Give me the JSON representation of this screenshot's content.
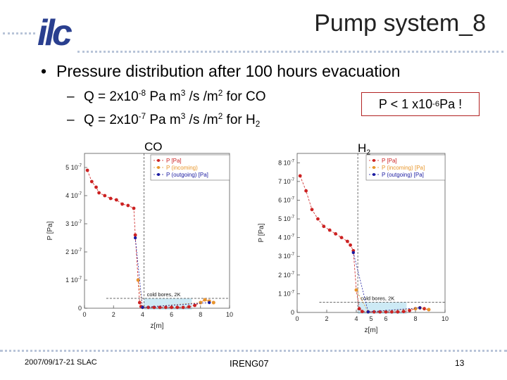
{
  "slide": {
    "title": "Pump system_8",
    "logo_text": "ilc",
    "bullet": "Pressure distribution after 100 hours evacuation",
    "sub1": {
      "a": "Q = 2x10",
      "e1": "-8",
      "b": " Pa m",
      "e2": "3",
      "c": " /s /m",
      "e3": "2",
      "d": " for CO"
    },
    "sub2": {
      "a": "Q = 2x10",
      "e1": "-7",
      "b": " Pa m",
      "e2": "3",
      "c": " /s /m",
      "e3": "2",
      "d": " for H",
      "s": "2"
    },
    "pressure_box": {
      "a": "P < 1 x10",
      "e": "-6",
      "b": " Pa !"
    },
    "co_label": "CO",
    "h2_label": {
      "a": "H",
      "s": "2"
    }
  },
  "footer": {
    "date": "2007/09/17-21  SLAC",
    "conference": "IRENG07",
    "page": "13"
  },
  "colors": {
    "series1": "#cc2222",
    "series2": "#e8962a",
    "series3": "#1a1aa0",
    "box_border": "#b22222",
    "cold_bore": "#cdeaf5"
  },
  "chart_data": [
    {
      "type": "line",
      "ylabel": "P [Pa]",
      "xlabel": "z[m]",
      "xlim": [
        0,
        10
      ],
      "ylim": [
        0,
        5.5e-07
      ],
      "x_ticks": [
        "0",
        "2",
        "4",
        "6",
        "8",
        "10"
      ],
      "y_ticks": [
        {
          "m": "0",
          "e": ""
        },
        {
          "m": "1 10",
          "e": "-7"
        },
        {
          "m": "2 10",
          "e": "-7"
        },
        {
          "m": "3 10",
          "e": "-7"
        },
        {
          "m": "4 10",
          "e": "-7"
        },
        {
          "m": "5 10",
          "e": "-7"
        }
      ],
      "legend": [
        "P [Pa]",
        "P (incoming)",
        "P (outgoing) [Pa]"
      ],
      "legend_position": "top-right",
      "annotation": "cold bores, 2K",
      "x": [
        0.2,
        0.5,
        0.8,
        1.0,
        1.4,
        1.8,
        2.2,
        2.6,
        3.0,
        3.4,
        3.5,
        3.7,
        3.8,
        3.9,
        4.0,
        4.4,
        4.8,
        5.2,
        5.6,
        6.0,
        6.4,
        6.8,
        7.2,
        7.6,
        8.0,
        8.3,
        8.6,
        8.9
      ],
      "series": [
        {
          "name": "P [Pa]",
          "values": [
            4.9e-07,
            4.5e-07,
            4.3e-07,
            4.1e-07,
            4e-07,
            3.9e-07,
            3.85e-07,
            3.7e-07,
            3.65e-07,
            3.55e-07,
            2.6e-07,
            1e-07,
            2e-08,
            6e-09,
            3e-09,
            3e-09,
            3e-09,
            3e-09,
            3e-09,
            3e-09,
            3e-09,
            3e-09,
            5e-09,
            1e-08,
            2e-08,
            3e-08,
            2.5e-08,
            2e-08
          ]
        },
        {
          "name": "P (incoming)",
          "values": [
            null,
            null,
            null,
            null,
            null,
            null,
            null,
            null,
            null,
            null,
            null,
            1e-07,
            null,
            null,
            3e-09,
            null,
            null,
            null,
            null,
            null,
            null,
            null,
            null,
            null,
            2e-08,
            3e-08,
            2.5e-08,
            2e-08
          ]
        },
        {
          "name": "P (outgoing) [Pa]",
          "values": [
            null,
            null,
            null,
            null,
            null,
            null,
            null,
            null,
            null,
            null,
            2.5e-07,
            null,
            null,
            null,
            3e-09,
            null,
            null,
            null,
            null,
            null,
            null,
            null,
            null,
            null,
            null,
            null,
            2e-08,
            null
          ]
        }
      ]
    },
    {
      "type": "line",
      "ylabel": "P [Pa]",
      "xlabel": "z[m]",
      "xlim": [
        0,
        10
      ],
      "ylim": [
        0,
        8.5e-07
      ],
      "x_ticks": [
        "0",
        "2",
        "4",
        "6",
        "8",
        "10"
      ],
      "extra_x_tick": "5",
      "y_ticks": [
        {
          "m": "0",
          "e": ""
        },
        {
          "m": "1 10",
          "e": "-7"
        },
        {
          "m": "2 10",
          "e": "-7"
        },
        {
          "m": "3 10",
          "e": "-7"
        },
        {
          "m": "4 10",
          "e": "-7"
        },
        {
          "m": "5 10",
          "e": "-7"
        },
        {
          "m": "6 10",
          "e": "-7"
        },
        {
          "m": "7 10",
          "e": "-7"
        },
        {
          "m": "8 10",
          "e": "-7"
        }
      ],
      "legend": [
        "P [Pa]",
        "P (incoming) [Pa]",
        "P (outgoing) [Pa]"
      ],
      "legend_position": "top-right",
      "annotation": "cold bores, 2K",
      "x": [
        0.2,
        0.6,
        1.0,
        1.4,
        1.8,
        2.2,
        2.6,
        3.0,
        3.4,
        3.6,
        3.8,
        4.0,
        4.2,
        4.4,
        4.8,
        5.2,
        5.6,
        6.0,
        6.4,
        6.8,
        7.2,
        7.6,
        8.0,
        8.3,
        8.6,
        8.9
      ],
      "series": [
        {
          "name": "P [Pa]",
          "values": [
            7.3e-07,
            6.5e-07,
            5.5e-07,
            5e-07,
            4.6e-07,
            4.4e-07,
            4.2e-07,
            4e-07,
            3.8e-07,
            3.6e-07,
            3.3e-07,
            1.2e-07,
            2e-08,
            5e-09,
            3e-09,
            3e-09,
            3e-09,
            3e-09,
            3e-09,
            3e-09,
            5e-09,
            1e-08,
            2e-08,
            2.5e-08,
            2e-08,
            1.5e-08
          ]
        },
        {
          "name": "P (incoming) [Pa]",
          "values": [
            null,
            null,
            null,
            null,
            null,
            null,
            null,
            null,
            null,
            null,
            null,
            1.2e-07,
            null,
            null,
            3e-09,
            null,
            null,
            null,
            null,
            null,
            null,
            null,
            2e-08,
            2.5e-08,
            null,
            1.5e-08
          ]
        },
        {
          "name": "P (outgoing) [Pa]",
          "values": [
            null,
            null,
            null,
            null,
            null,
            null,
            null,
            null,
            null,
            null,
            3.2e-07,
            null,
            null,
            null,
            3e-09,
            null,
            null,
            null,
            null,
            null,
            null,
            null,
            null,
            2.5e-08,
            null,
            null
          ]
        }
      ]
    }
  ]
}
